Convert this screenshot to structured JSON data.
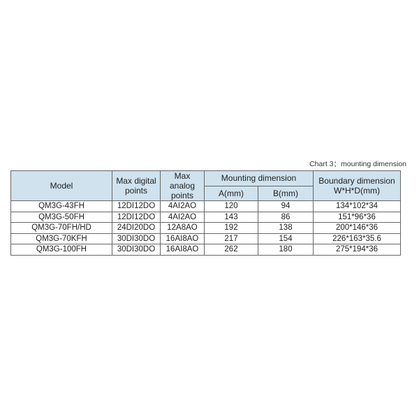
{
  "caption": "Chart 3：mounting dimension",
  "headers": {
    "model": "Model",
    "digital": "Max digital points",
    "analog": "Max analog points",
    "mounting": "Mounting dimension",
    "a": "A(mm)",
    "b": "B(mm)",
    "boundary": "Boundary dimension",
    "boundary_sub": "W*H*D(mm)"
  },
  "header_color": "#cfe2ee",
  "rows": [
    [
      "QM3G-43FH",
      "12DI12DO",
      "4AI2AO",
      "120",
      "94",
      "134*102*34"
    ],
    [
      "QM3G-50FH",
      "12DI12DO",
      "4AI2AO",
      "143",
      "86",
      "151*96*36"
    ],
    [
      "QM3G-70FH/HD",
      "24DI20DO",
      "12A8AO",
      "192",
      "138",
      "200*146*36"
    ],
    [
      "QM3G-70KFH",
      "30DI30DO",
      "16AI8AO",
      "217",
      "154",
      "226*163*35.6"
    ],
    [
      "QM3G-100FH",
      "30DI30DO",
      "16AI8AO",
      "262",
      "180",
      "275*194*36"
    ]
  ]
}
